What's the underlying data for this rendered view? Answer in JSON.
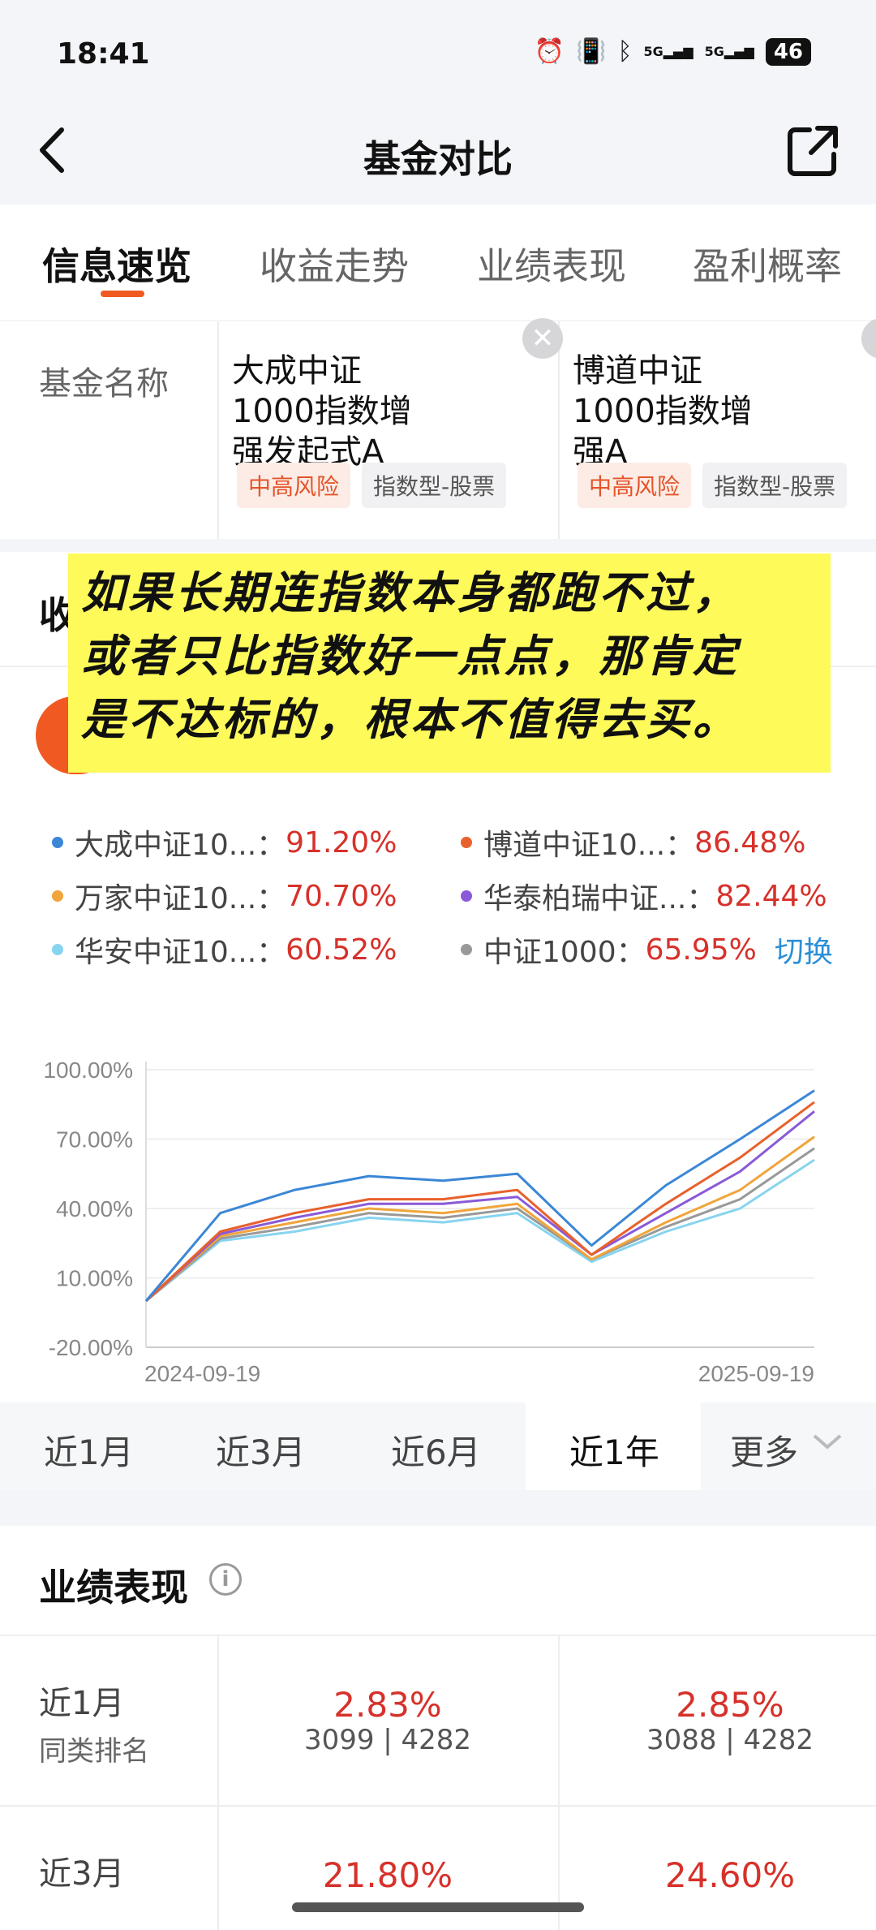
{
  "status": {
    "time": "18:41",
    "battery": "46",
    "net1": "5G",
    "net2": "5G"
  },
  "header": {
    "title": "基金对比"
  },
  "tabs": [
    "信息速览",
    "收益走势",
    "业绩表现",
    "盈利概率"
  ],
  "funds": {
    "label": "基金名称",
    "items": [
      {
        "name": "大成中证1000指数增强发起式A",
        "risk": "中高风险",
        "type": "指数型-股票"
      },
      {
        "name": "博道中证1000指数增强A",
        "risk": "中高风险",
        "type": "指数型-股票"
      }
    ]
  },
  "section2": {
    "title_partial": "收"
  },
  "overlay": {
    "lines": [
      "如果长期连指数本身都跑不过，",
      "或者只比指数好一点点，那肯定",
      "是不达标的，根本不值得去买。"
    ]
  },
  "legend": [
    {
      "name": "大成中证10...：",
      "value": "91.20%",
      "color": "#3b87d6"
    },
    {
      "name": "博道中证10...：",
      "value": "86.48%",
      "color": "#e8612c"
    },
    {
      "name": "万家中证10...：",
      "value": "70.70%",
      "color": "#f0a53a"
    },
    {
      "name": "华泰柏瑞中证...：",
      "value": "82.44%",
      "color": "#8a5ad8"
    },
    {
      "name": "华安中证10...：",
      "value": "60.52%",
      "color": "#87d4ef"
    },
    {
      "name": "中证1000：",
      "value": "65.95%",
      "color": "#999999"
    }
  ],
  "legend_switch": "切换",
  "chart_data": {
    "type": "line",
    "x": [
      "2024-09-19",
      "2024-10-08",
      "2024-11-15",
      "2025-01-02",
      "2025-02-20",
      "2025-04-07",
      "2025-05-20",
      "2025-07-01",
      "2025-08-15",
      "2025-09-19"
    ],
    "xtick_labels": [
      "2024-09-19",
      "2025-09-19"
    ],
    "yticks": [
      "100.00%",
      "70.00%",
      "40.00%",
      "10.00%",
      "-20.00%"
    ],
    "ylim": [
      -20,
      100
    ],
    "grid": true,
    "series": [
      {
        "name": "大成中证10...",
        "color": "#3b87d6",
        "values": [
          0,
          38,
          48,
          54,
          52,
          55,
          24,
          50,
          70,
          91
        ]
      },
      {
        "name": "博道中证10...",
        "color": "#e8612c",
        "values": [
          0,
          30,
          38,
          44,
          44,
          48,
          20,
          42,
          62,
          86
        ]
      },
      {
        "name": "华泰柏瑞中证...",
        "color": "#8a5ad8",
        "values": [
          0,
          29,
          36,
          42,
          42,
          45,
          20,
          38,
          56,
          82
        ]
      },
      {
        "name": "万家中证10...",
        "color": "#f0a53a",
        "values": [
          0,
          28,
          34,
          40,
          38,
          42,
          18,
          34,
          48,
          71
        ]
      },
      {
        "name": "中证1000",
        "color": "#999999",
        "values": [
          0,
          27,
          32,
          38,
          36,
          40,
          18,
          32,
          44,
          66
        ]
      },
      {
        "name": "华安中证10...",
        "color": "#87d4ef",
        "values": [
          0,
          26,
          30,
          36,
          34,
          38,
          17,
          30,
          40,
          61
        ]
      }
    ]
  },
  "periods": [
    "近1月",
    "近3月",
    "近6月",
    "近1年",
    "更多"
  ],
  "performance": {
    "title": "业绩表现",
    "rows": [
      {
        "label": "近1月",
        "sub": "同类排名",
        "values": [
          {
            "pct": "2.83%",
            "rank": "3099 | 4282"
          },
          {
            "pct": "2.85%",
            "rank": "3088 | 4282"
          }
        ]
      },
      {
        "label": "近3月",
        "sub": "",
        "values": [
          {
            "pct": "21.80%",
            "rank": ""
          },
          {
            "pct": "24.60%",
            "rank": ""
          }
        ]
      }
    ]
  }
}
